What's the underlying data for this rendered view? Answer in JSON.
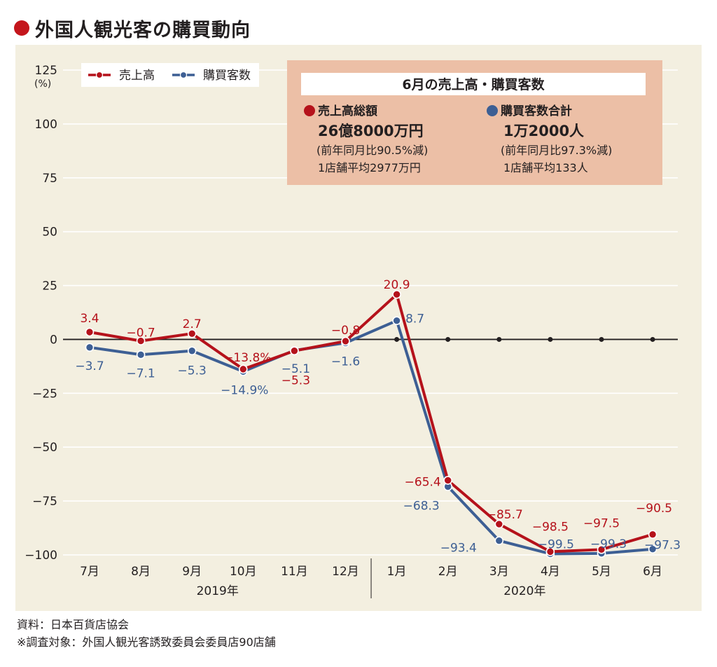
{
  "title": "外国人観光客の購買動向",
  "colors": {
    "sales": "#b5121b",
    "customers": "#3d5f94",
    "title_dot": "#c4161c",
    "panel_bg": "#f3efe0",
    "box_bg": "#ecbfa6"
  },
  "chart_data": {
    "type": "line",
    "categories": [
      "7月",
      "8月",
      "9月",
      "10月",
      "11月",
      "12月",
      "1月",
      "2月",
      "3月",
      "4月",
      "5月",
      "6月"
    ],
    "year_groups": [
      {
        "label": "2019年",
        "from": 0,
        "to": 5
      },
      {
        "label": "2020年",
        "from": 6,
        "to": 11
      }
    ],
    "ylim": [
      -100,
      125
    ],
    "yticks": [
      125,
      100,
      75,
      50,
      25,
      0,
      -25,
      -50,
      -75,
      -100
    ],
    "ytick_labels": [
      "125",
      "100",
      "75",
      "50",
      "25",
      "0",
      "−25",
      "−50",
      "−75",
      "−100"
    ],
    "yunit": "(%)",
    "grid": true,
    "legend_placement": "top-left",
    "series": [
      {
        "name": "売上高",
        "color": "#b5121b",
        "values": [
          3.4,
          -0.7,
          2.7,
          -13.8,
          -5.3,
          -0.8,
          20.9,
          -65.4,
          -85.7,
          -98.5,
          -97.5,
          -90.5
        ],
        "labels": [
          "3.4",
          "−0.7",
          "2.7",
          "−13.8%",
          "−5.3",
          "−0.8",
          "20.9",
          "−65.4",
          "−85.7",
          "−98.5",
          "−97.5",
          "−90.5"
        ]
      },
      {
        "name": "購買客数",
        "color": "#3d5f94",
        "values": [
          -3.7,
          -7.1,
          -5.3,
          -14.9,
          -5.1,
          -1.6,
          8.7,
          -68.3,
          -93.4,
          -99.5,
          -99.3,
          -97.3
        ],
        "labels": [
          "−3.7",
          "−7.1",
          "−5.3",
          "−14.9%",
          "−5.1",
          "−1.6",
          "8.7",
          "−68.3",
          "−93.4",
          "−99.5",
          "−99.3",
          "−97.3"
        ]
      }
    ]
  },
  "infobox": {
    "title": "6月の売上高・購買客数",
    "sales": {
      "label": "売上高総額",
      "value": "26億8000万円",
      "change": "(前年同月比90.5%減)",
      "avg": "1店舗平均2977万円"
    },
    "customers": {
      "label": "購買客数合計",
      "value": "1万2000人",
      "change": "(前年同月比97.3%減)",
      "avg": "1店舗平均133人"
    }
  },
  "footer": {
    "source": "資料：日本百貨店協会",
    "note": "※調査対象：外国人観光客誘致委員会委員店90店舗"
  }
}
